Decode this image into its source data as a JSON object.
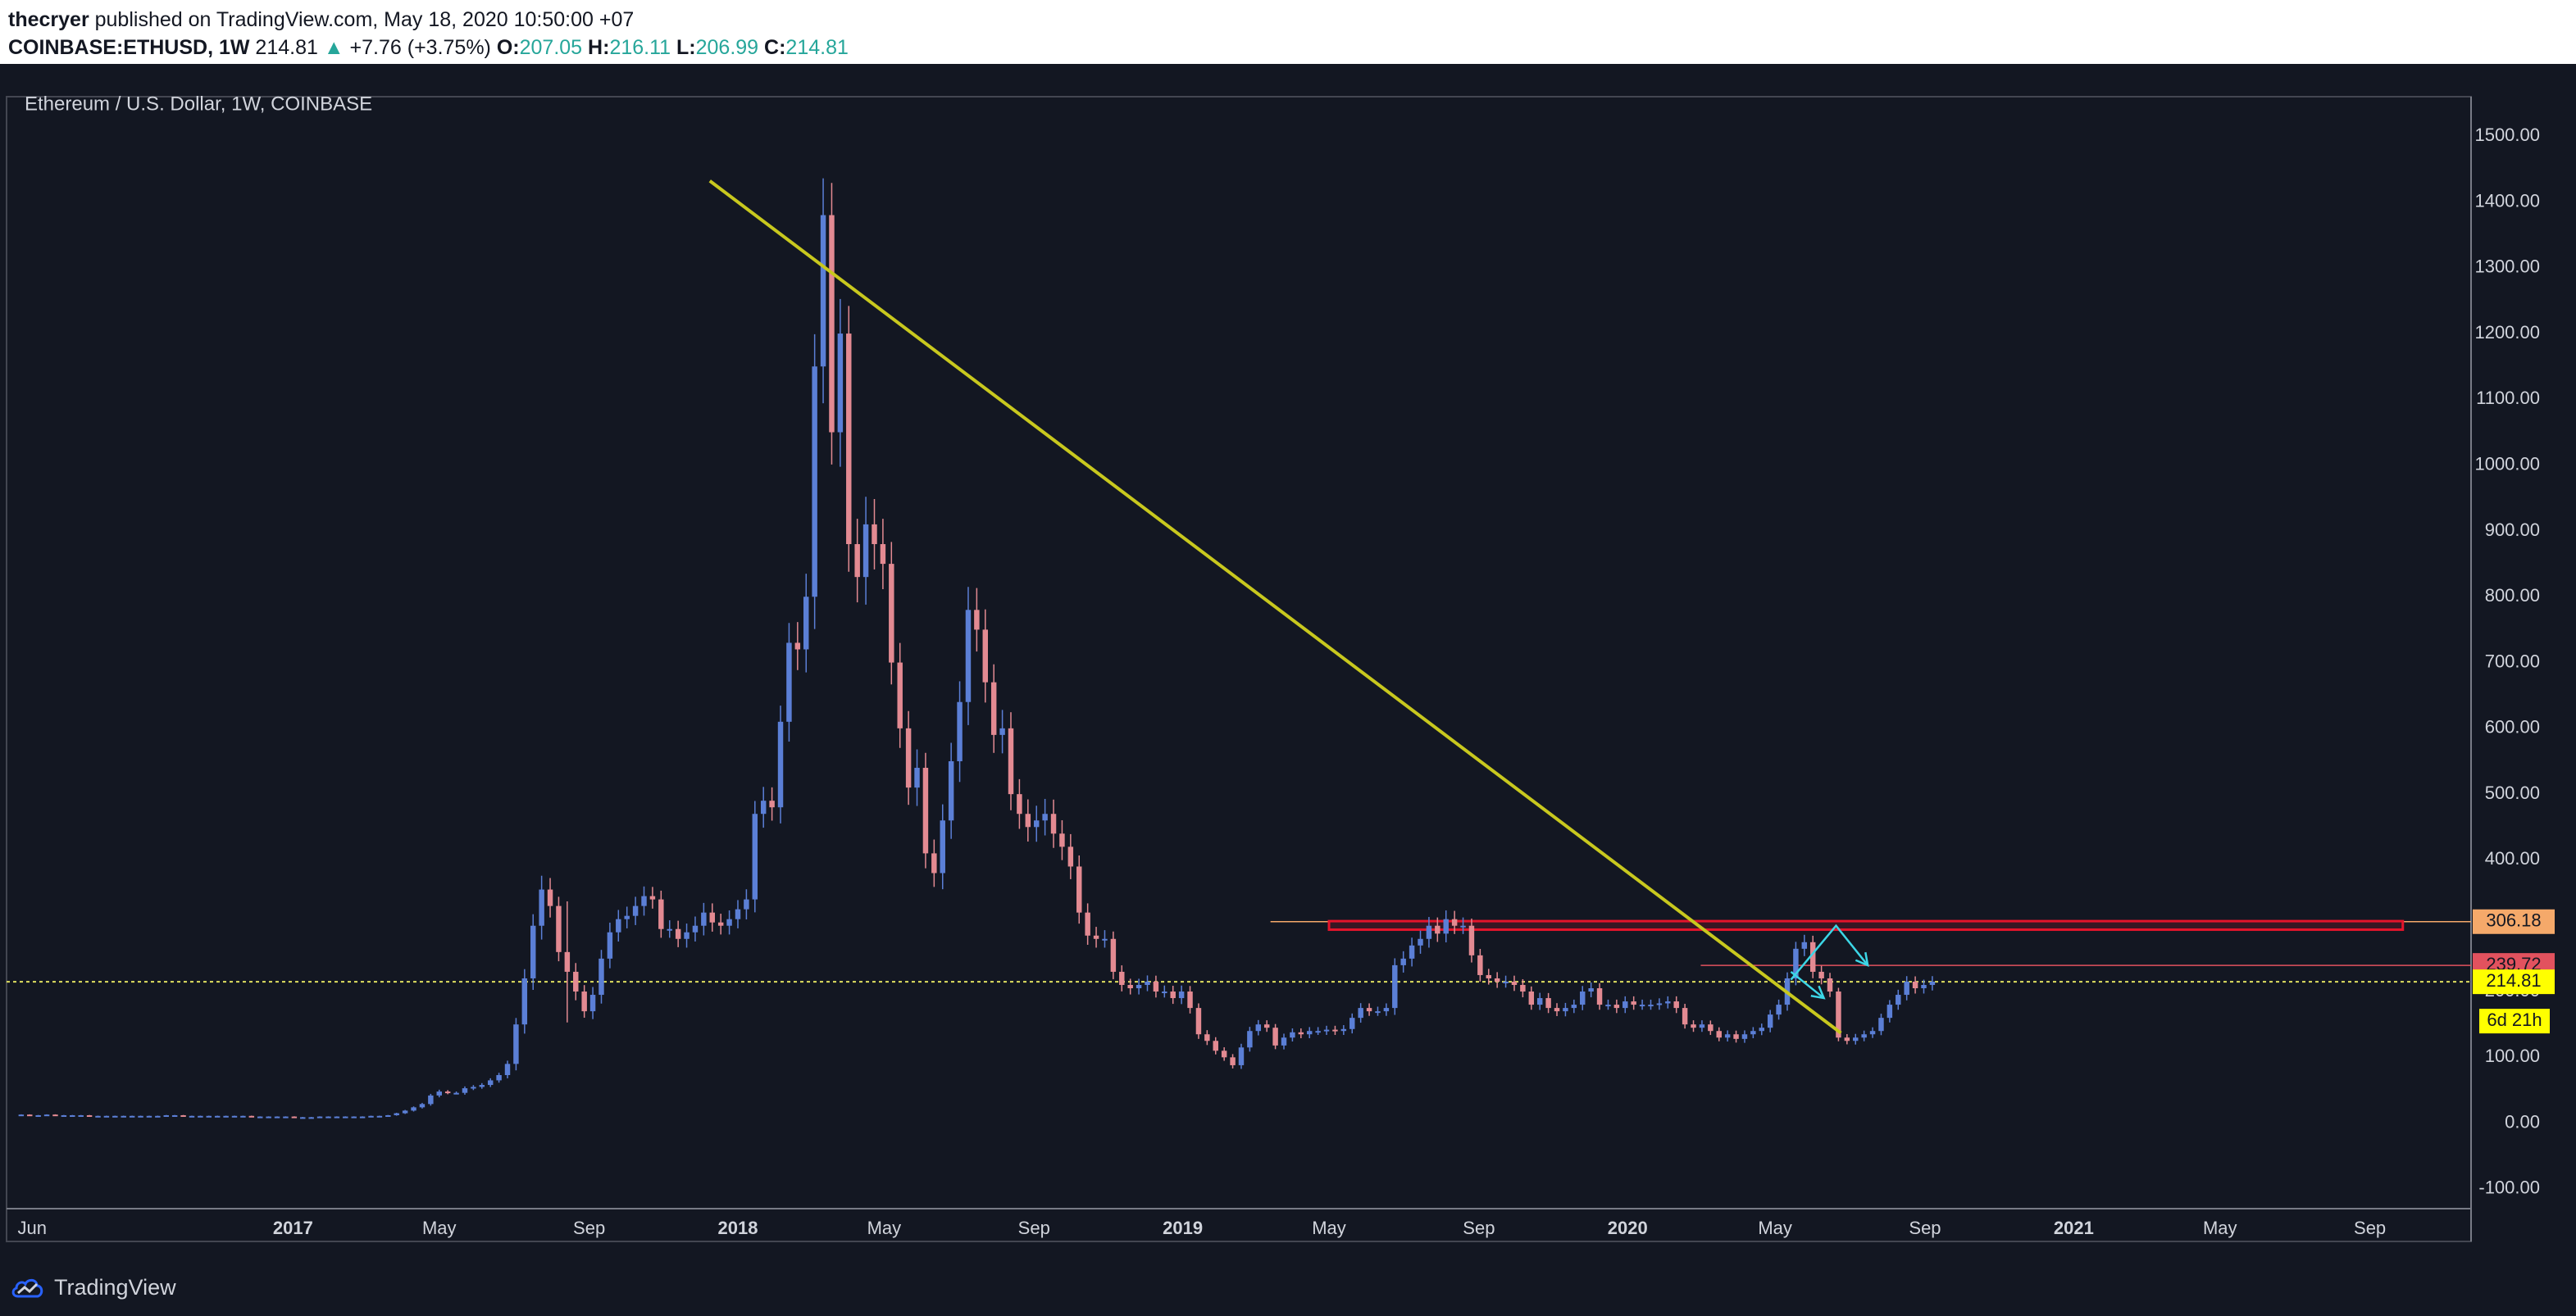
{
  "header": {
    "author": "thecryer",
    "publish_text": "published on TradingView.com, May 18, 2020 10:50:00 +07",
    "symbol": "COINBASE:ETHUSD, 1W",
    "last": "214.81",
    "change": "+7.76 (+3.75%)",
    "o_label": "O:",
    "o_val": "207.05",
    "h_label": "H:",
    "h_val": "216.11",
    "l_label": "L:",
    "l_val": "206.99",
    "c_label": "C:",
    "c_val": "214.81"
  },
  "footer": {
    "brand": "TradingView"
  },
  "colors": {
    "background": "#131722",
    "up": "#5b7fd6",
    "down": "#e38a92",
    "trendline": "#c8c81e",
    "resistance": "#e4142b",
    "level_line": "#e0e060",
    "arrow": "#3cd6e6",
    "axis_text": "#d1d4dc",
    "badge_orange": "#f5a96a",
    "badge_red": "#e2525e",
    "badge_yellow": "#ffff00"
  },
  "chart_data": {
    "type": "candlestick",
    "title": "Ethereum / U.S. Dollar, 1W, COINBASE",
    "y_ticks": [
      "1500.00",
      "1400.00",
      "1300.00",
      "1200.00",
      "1100.00",
      "1000.00",
      "900.00",
      "800.00",
      "700.00",
      "600.00",
      "500.00",
      "400.00",
      "300.00",
      "200.00",
      "100.00",
      "0.00",
      "-100.00"
    ],
    "y_tick_values": [
      1500,
      1400,
      1300,
      1200,
      1100,
      1000,
      900,
      800,
      700,
      600,
      500,
      400,
      300,
      200,
      100,
      0,
      -100
    ],
    "ylim": [
      -130,
      1560
    ],
    "x_tick_labels": [
      "Jun",
      "2017",
      "May",
      "Sep",
      "2018",
      "May",
      "Sep",
      "2019",
      "May",
      "Sep",
      "2020",
      "May",
      "Sep",
      "2021",
      "May",
      "Sep"
    ],
    "x_tick_dates": [
      "2016-06-01",
      "2017-01-01",
      "2017-05-01",
      "2017-09-01",
      "2018-01-01",
      "2018-05-01",
      "2018-09-01",
      "2019-01-01",
      "2019-05-01",
      "2019-09-01",
      "2020-01-01",
      "2020-05-01",
      "2020-09-01",
      "2021-01-01",
      "2021-05-01",
      "2021-09-01"
    ],
    "x_start": "2016-05-11",
    "x_end": "2021-11-23",
    "candle_anchor_date": "2016-05-23",
    "candle_interval_days": 7,
    "anchor_ohlc": [
      12,
      13,
      12,
      13
    ],
    "closes": [
      13,
      12,
      12,
      13,
      12,
      12,
      12,
      12,
      11,
      11,
      11,
      11,
      11,
      11,
      11,
      11,
      11,
      12,
      12,
      11,
      11,
      11,
      11,
      11,
      11,
      11,
      11,
      10,
      10,
      10,
      10,
      10,
      9,
      9,
      9,
      10,
      10,
      10,
      10,
      10,
      10,
      11,
      11,
      12,
      15,
      19,
      24,
      29,
      42,
      48,
      46,
      46,
      53,
      55,
      58,
      65,
      73,
      90,
      150,
      220,
      300,
      355,
      330,
      260,
      230,
      200,
      170,
      195,
      250,
      290,
      310,
      315,
      330,
      345,
      340,
      295,
      295,
      280,
      290,
      300,
      320,
      305,
      300,
      310,
      325,
      340,
      470,
      490,
      480,
      610,
      730,
      720,
      800,
      1150,
      1380,
      1050,
      1200,
      880,
      830,
      910,
      880,
      850,
      700,
      600,
      510,
      540,
      410,
      380,
      460,
      550,
      640,
      780,
      750,
      670,
      590,
      600,
      500,
      470,
      450,
      460,
      470,
      440,
      420,
      390,
      320,
      285,
      280,
      280,
      230,
      210,
      205,
      210,
      215,
      200,
      200,
      190,
      200,
      175,
      135,
      125,
      110,
      100,
      88,
      115,
      140,
      150,
      145,
      118,
      130,
      138,
      135,
      140,
      140,
      142,
      140,
      143,
      160,
      175,
      170,
      170,
      175,
      240,
      250,
      270,
      280,
      300,
      288,
      310,
      300,
      300,
      255,
      225,
      220,
      215,
      215,
      210,
      200,
      180,
      190,
      175,
      170,
      175,
      180,
      200,
      205,
      180,
      180,
      175,
      185,
      180,
      180,
      180,
      182,
      185,
      175,
      150,
      145,
      150,
      140,
      130,
      135,
      128,
      135,
      140,
      145,
      165,
      180,
      220,
      265,
      275,
      230,
      220,
      200,
      130,
      125,
      130,
      135,
      140,
      160,
      180,
      195,
      215,
      205,
      210,
      215
    ],
    "volatility": [
      1,
      1,
      1,
      1,
      1,
      1,
      1,
      1,
      1,
      1,
      1,
      1,
      1,
      1,
      1,
      1,
      1,
      1,
      1,
      1,
      1,
      1,
      1,
      1,
      1,
      1,
      1,
      1,
      1,
      1,
      1,
      1,
      1,
      1,
      1,
      1,
      1,
      1,
      1,
      1,
      1,
      1,
      1,
      1,
      2,
      3,
      4,
      5,
      7,
      8,
      6,
      6,
      8,
      8,
      8,
      9,
      10,
      14,
      28,
      40,
      50,
      60,
      50,
      40,
      220,
      38,
      28,
      34,
      38,
      42,
      40,
      40,
      40,
      42,
      40,
      38,
      38,
      36,
      38,
      40,
      42,
      40,
      38,
      38,
      40,
      44,
      56,
      60,
      58,
      70,
      86,
      90,
      100,
      140,
      160,
      140,
      150,
      120,
      110,
      120,
      110,
      110,
      95,
      85,
      75,
      80,
      65,
      60,
      70,
      80,
      90,
      100,
      95,
      88,
      78,
      80,
      70,
      65,
      63,
      64,
      65,
      62,
      58,
      55,
      48,
      40,
      38,
      38,
      32,
      28,
      27,
      27,
      27,
      26,
      26,
      25,
      26,
      24,
      20,
      18,
      16,
      15,
      14,
      16,
      18,
      19,
      18,
      16,
      17,
      17,
      17,
      17,
      17,
      17,
      17,
      17,
      19,
      21,
      20,
      20,
      20,
      30,
      32,
      34,
      36,
      38,
      36,
      38,
      36,
      36,
      31,
      28,
      27,
      27,
      26,
      26,
      25,
      22,
      23,
      22,
      21,
      22,
      22,
      24,
      25,
      22,
      22,
      22,
      22,
      22,
      22,
      22,
      22,
      22,
      22,
      18,
      18,
      18,
      17,
      16,
      17,
      16,
      17,
      17,
      18,
      20,
      22,
      26,
      30,
      32,
      28,
      26,
      24,
      16,
      15,
      16,
      16,
      16,
      18,
      20,
      22,
      24,
      23,
      23,
      24
    ],
    "trendline": {
      "start": [
        "2017-12-09",
        1432
      ],
      "end": [
        "2020-06-24",
        137
      ]
    },
    "resistance_zone": {
      "from": "2019-05-01",
      "to": "2021-09-28",
      "low": 294,
      "high": 307
    },
    "level_lines": [
      {
        "date_from": "2019-03-14",
        "value": 306.18,
        "label": "306.18",
        "style": "solid"
      },
      {
        "date_from": "2020-03-01",
        "value": 239.72,
        "label": "239.72",
        "style": "solid"
      },
      {
        "date_from": "2016-05-11",
        "value": 214.81,
        "label": "214.81",
        "style": "dotted"
      }
    ],
    "countdown_label": "6d 21h",
    "projection_arrows": [
      {
        "points": [
          [
            "2020-05-14",
            218
          ],
          [
            "2020-06-20",
            300
          ],
          [
            "2020-07-16",
            240
          ]
        ]
      },
      {
        "points": [
          [
            "2020-05-14",
            230
          ],
          [
            "2020-06-10",
            190
          ]
        ]
      }
    ]
  }
}
